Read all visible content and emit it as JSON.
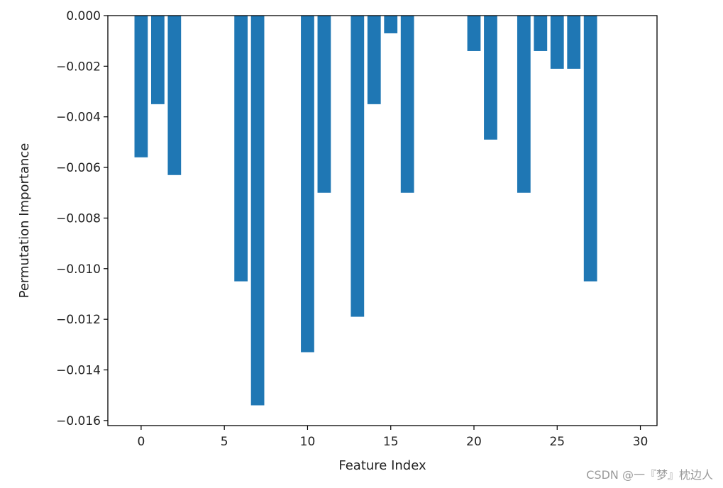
{
  "chart_data": {
    "type": "bar",
    "xlabel": "Feature Index",
    "ylabel": "Permutation Importance",
    "xlim": [
      -2,
      31
    ],
    "ylim": [
      -0.0162,
      0.0
    ],
    "xticks": [
      0,
      5,
      10,
      15,
      20,
      25,
      30
    ],
    "yticks": [
      0.0,
      -0.002,
      -0.004,
      -0.006,
      -0.008,
      -0.01,
      -0.012,
      -0.014,
      -0.016
    ],
    "ytick_labels": [
      "0.000",
      "−0.002",
      "−0.004",
      "−0.006",
      "−0.008",
      "−0.010",
      "−0.012",
      "−0.014",
      "−0.016"
    ],
    "bar_color": "#1f77b4",
    "grid": false,
    "x": [
      0,
      1,
      2,
      6,
      7,
      10,
      11,
      13,
      14,
      15,
      16,
      20,
      21,
      23,
      24,
      25,
      26,
      27
    ],
    "values": [
      -0.0056,
      -0.0035,
      -0.0063,
      -0.0105,
      -0.0154,
      -0.0133,
      -0.007,
      -0.0119,
      -0.0035,
      -0.0007,
      -0.007,
      -0.0014,
      -0.0049,
      -0.007,
      -0.0014,
      -0.0021,
      -0.0021,
      -0.0105
    ]
  },
  "watermark": "CSDN @一『梦』枕边人"
}
